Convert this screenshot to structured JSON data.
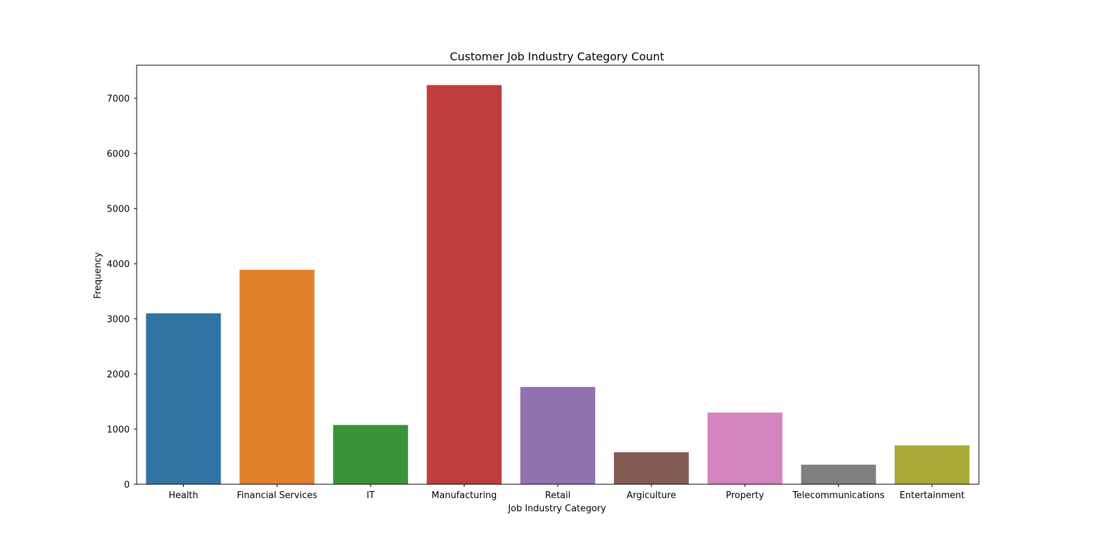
{
  "chart_data": {
    "type": "bar",
    "title": "Customer Job Industry Category Count",
    "xlabel": "Job Industry Category",
    "ylabel": "Frequency",
    "categories": [
      "Health",
      "Financial Services",
      "IT",
      "Manufacturing",
      "Retail",
      "Argiculture",
      "Property",
      "Telecommunications",
      "Entertainment"
    ],
    "values": [
      3100,
      3890,
      1075,
      7240,
      1765,
      580,
      1300,
      355,
      705
    ],
    "colors": [
      "#3274a1",
      "#e1812c",
      "#3a923a",
      "#c03d3e",
      "#9372b2",
      "#845b53",
      "#d684bd",
      "#7f7f7f",
      "#a9aa35"
    ],
    "ylim": [
      0,
      7600
    ],
    "yticks": [
      0,
      1000,
      2000,
      3000,
      4000,
      5000,
      6000,
      7000
    ],
    "grid": false,
    "legend": "none"
  }
}
